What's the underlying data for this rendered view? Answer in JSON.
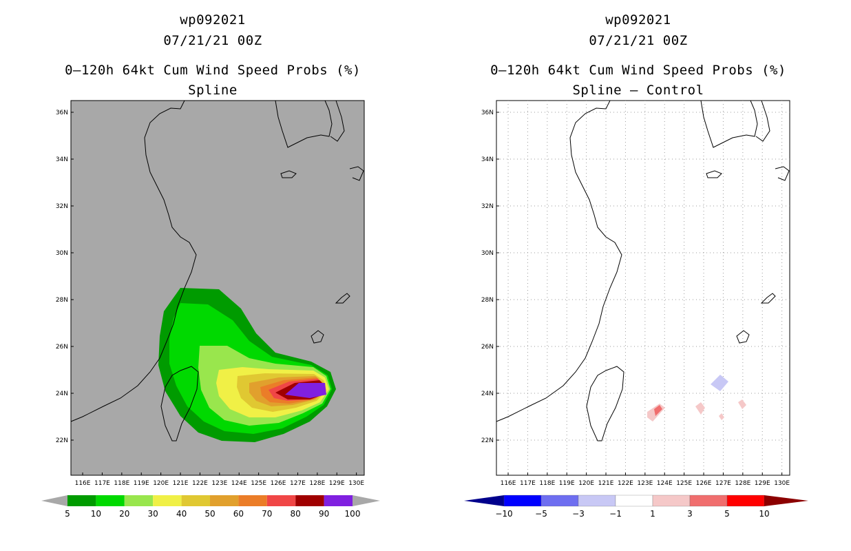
{
  "left_panel": {
    "title_line1": "wp092021",
    "title_line2": "07/21/21 00Z",
    "title_line3": "0–120h 64kt Cum Wind Speed Probs (%)",
    "title_line4": "Spline",
    "background_color": "#a8a8a8",
    "colorbar": {
      "labels": [
        "5",
        "10",
        "20",
        "30",
        "40",
        "50",
        "60",
        "70",
        "80",
        "90",
        "100"
      ],
      "colors": [
        "#009b00",
        "#00d900",
        "#99e64d",
        "#f0f046",
        "#e0c832",
        "#e1a02d",
        "#eb7d28",
        "#f04646",
        "#a00000",
        "#8020e0"
      ]
    }
  },
  "right_panel": {
    "title_line1": "wp092021",
    "title_line2": "07/21/21 00Z",
    "title_line3": "0–120h 64kt Cum Wind Speed Probs (%)",
    "title_line4": "Spline – Control",
    "background_color": "#ffffff",
    "colorbar": {
      "labels": [
        "−10",
        "−5",
        "−3",
        "−1",
        "1",
        "3",
        "5",
        "10"
      ],
      "colors": [
        "#00008c",
        "#0000ff",
        "#6e6ef0",
        "#c8c8f5",
        "#ffffff",
        "#f5c8c8",
        "#f06e6e",
        "#ff0000",
        "#8c0000"
      ]
    }
  },
  "map": {
    "lat_labels": [
      "36N",
      "34N",
      "32N",
      "30N",
      "28N",
      "26N",
      "24N",
      "22N"
    ],
    "lon_labels": [
      "116E",
      "117E",
      "118E",
      "119E",
      "120E",
      "121E",
      "122E",
      "123E",
      "124E",
      "125E",
      "126E",
      "127E",
      "128E",
      "129E",
      "130E"
    ]
  }
}
